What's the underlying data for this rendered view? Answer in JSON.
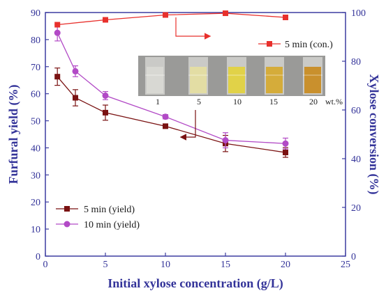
{
  "chart_data": {
    "type": "line",
    "x_axis": {
      "label": "Initial xylose concentration (g/L)",
      "range": [
        0,
        25
      ],
      "ticks": [
        "0",
        "5",
        "10",
        "15",
        "20",
        "25"
      ]
    },
    "y_axis_left": {
      "label": "Furfural yield (%)",
      "range": [
        0,
        90
      ],
      "ticks": [
        "0",
        "10",
        "20",
        "30",
        "40",
        "50",
        "60",
        "70",
        "80",
        "90"
      ]
    },
    "y_axis_right": {
      "label": "Xylose conversion (%)",
      "range": [
        0,
        100
      ],
      "ticks": [
        "0",
        "20",
        "40",
        "60",
        "80",
        "100"
      ]
    },
    "series": [
      {
        "name": "5 min (yield)",
        "axis": "left",
        "marker": "square",
        "color": "#7a1212",
        "x": [
          1,
          2.5,
          5,
          10,
          15,
          20
        ],
        "values": [
          66.3,
          58.5,
          53.0,
          48.0,
          41.6,
          38.3
        ],
        "errors": [
          3.2,
          3.0,
          2.8,
          0.8,
          3.0,
          1.8
        ]
      },
      {
        "name": "10 min (yield)",
        "axis": "left",
        "marker": "circle",
        "color": "#b24ac6",
        "x": [
          1,
          2.5,
          5,
          10,
          15,
          20
        ],
        "values": [
          82.5,
          68.3,
          59.3,
          51.5,
          42.8,
          41.6
        ],
        "errors": [
          3.0,
          2.0,
          1.5,
          0.8,
          2.8,
          2.0
        ]
      },
      {
        "name": "5 min (con.)",
        "axis": "right",
        "marker": "square",
        "color": "#e8302c",
        "x": [
          1,
          5,
          10,
          15,
          20
        ],
        "values": [
          95.0,
          97.0,
          99.0,
          99.7,
          98.0
        ],
        "errors": [
          0,
          0,
          0,
          0,
          0
        ]
      }
    ],
    "legend": {
      "left_position": "bottom-left",
      "right_position": "top-right"
    },
    "inset": {
      "labels": [
        "1",
        "5",
        "10",
        "15",
        "20"
      ],
      "unit": "wt.%",
      "vial_colors": [
        "#d9d9d4",
        "#e6dfa0",
        "#e3d33a",
        "#d6a92a",
        "#c98a1c"
      ]
    },
    "colors": {
      "frame": "#3c3ca0",
      "axis_title": "#333399"
    },
    "grid": false
  }
}
